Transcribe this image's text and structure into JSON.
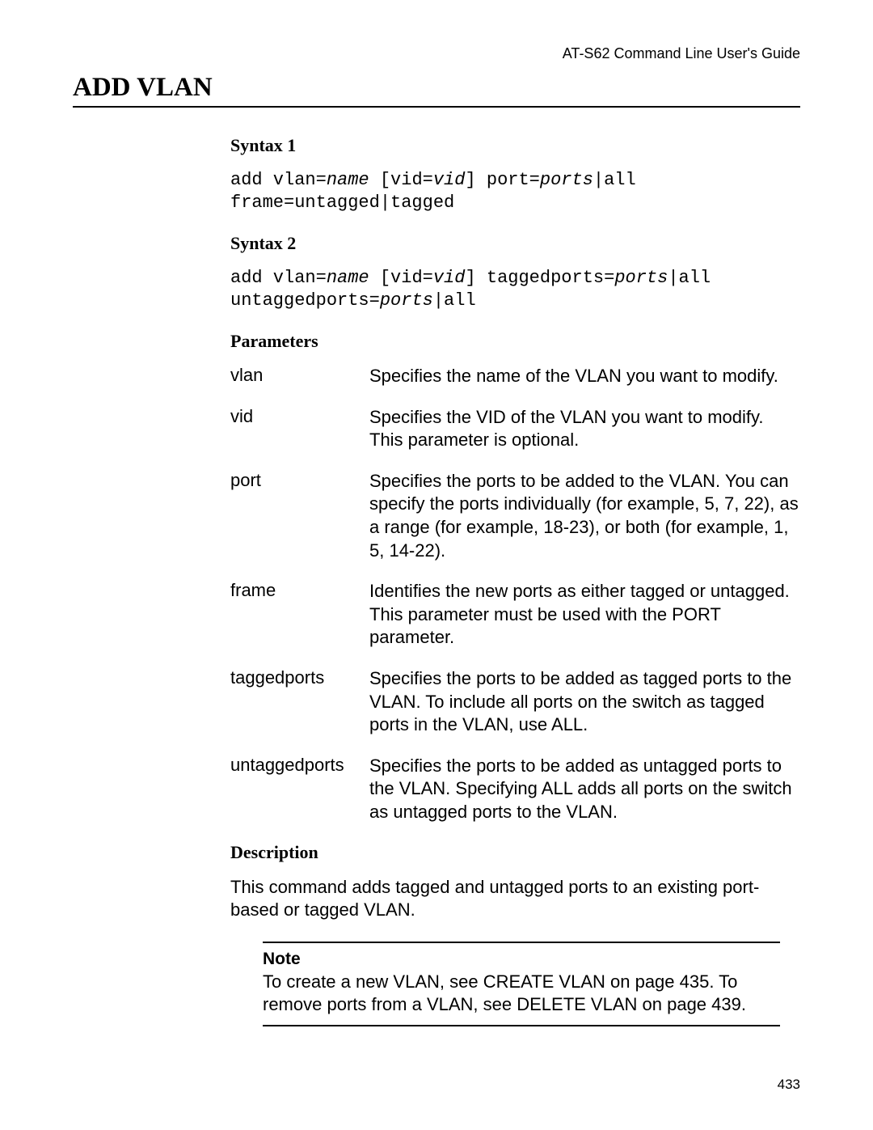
{
  "runningHead": "AT-S62 Command Line User's Guide",
  "pageTitle": "ADD VLAN",
  "syntax1": {
    "heading": "Syntax 1",
    "parts": [
      {
        "t": "kw",
        "v": "add vlan="
      },
      {
        "t": "var",
        "v": "name"
      },
      {
        "t": "kw",
        "v": " [vid="
      },
      {
        "t": "var",
        "v": "vid"
      },
      {
        "t": "kw",
        "v": "] port="
      },
      {
        "t": "var",
        "v": "ports"
      },
      {
        "t": "kw",
        "v": "|all"
      },
      {
        "t": "br"
      },
      {
        "t": "kw",
        "v": "frame=untagged|tagged"
      }
    ]
  },
  "syntax2": {
    "heading": "Syntax 2",
    "parts": [
      {
        "t": "kw",
        "v": "add vlan="
      },
      {
        "t": "var",
        "v": "name"
      },
      {
        "t": "kw",
        "v": " [vid="
      },
      {
        "t": "var",
        "v": "vid"
      },
      {
        "t": "kw",
        "v": "] taggedports="
      },
      {
        "t": "var",
        "v": "ports"
      },
      {
        "t": "kw",
        "v": "|all"
      },
      {
        "t": "br"
      },
      {
        "t": "kw",
        "v": "untaggedports="
      },
      {
        "t": "var",
        "v": "ports"
      },
      {
        "t": "kw",
        "v": "|all"
      }
    ]
  },
  "parametersHeading": "Parameters",
  "parameters": [
    {
      "term": "vlan",
      "desc": "Specifies the name of the VLAN you want to modify."
    },
    {
      "term": "vid",
      "desc": "Specifies the VID of the VLAN you want to modify. This parameter is optional."
    },
    {
      "term": "port",
      "desc": "Specifies the ports to be added to the VLAN. You can specify the ports individually (for example, 5, 7, 22), as a range (for example, 18-23), or both (for example, 1, 5, 14-22)."
    },
    {
      "term": "frame",
      "desc": "Identifies the new ports as either tagged or untagged. This parameter must be used with the PORT parameter."
    },
    {
      "term": "taggedports",
      "desc": "Specifies the ports to be added as tagged ports to the VLAN. To include all ports on the switch as tagged ports in the VLAN, use ALL."
    },
    {
      "term": "untaggedports",
      "desc": "Specifies the ports to be added as untagged ports to the VLAN. Specifying ALL adds all ports on the switch as untagged ports to the VLAN."
    }
  ],
  "descriptionHeading": "Description",
  "descriptionText": "This command adds tagged and untagged ports to an existing port-based or tagged VLAN.",
  "note": {
    "label": "Note",
    "text": "To create a new VLAN, see CREATE VLAN on page 435. To remove ports from a VLAN, see DELETE VLAN on page 439."
  },
  "pageNumber": "433"
}
